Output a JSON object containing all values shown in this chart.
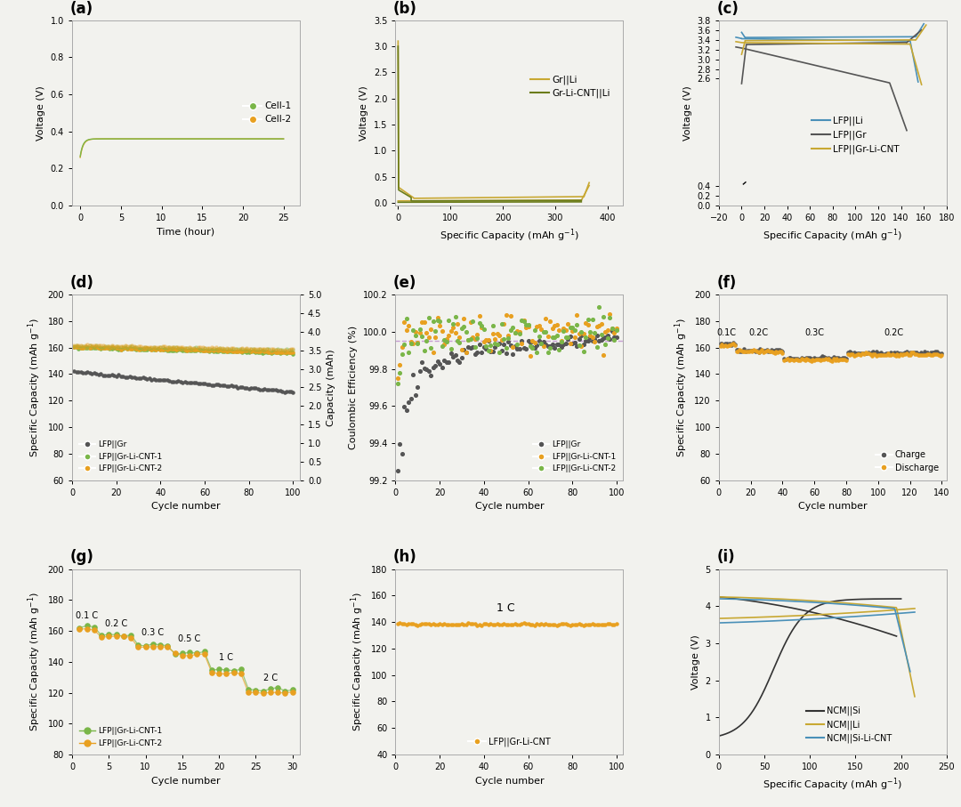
{
  "panel_labels": [
    "(a)",
    "(b)",
    "(c)",
    "(d)",
    "(e)",
    "(f)",
    "(g)",
    "(h)",
    "(i)"
  ],
  "colors": {
    "cell1": "#7ab648",
    "cell2": "#e8a020",
    "gr_li": "#c8a832",
    "gr_li_cnt": "#6b7c1a",
    "lfp_li": "#4a90b8",
    "lfp_gr": "#555555",
    "lfp_gr_li_cnt": "#c8a832",
    "ncm_si": "#333333",
    "ncm_li": "#c8a832",
    "ncm_si_li_cnt": "#4a90b8",
    "charge": "#555555",
    "discharge": "#e8a020",
    "dashed_line": "#bb88cc",
    "bg": "#f2f2ee"
  }
}
